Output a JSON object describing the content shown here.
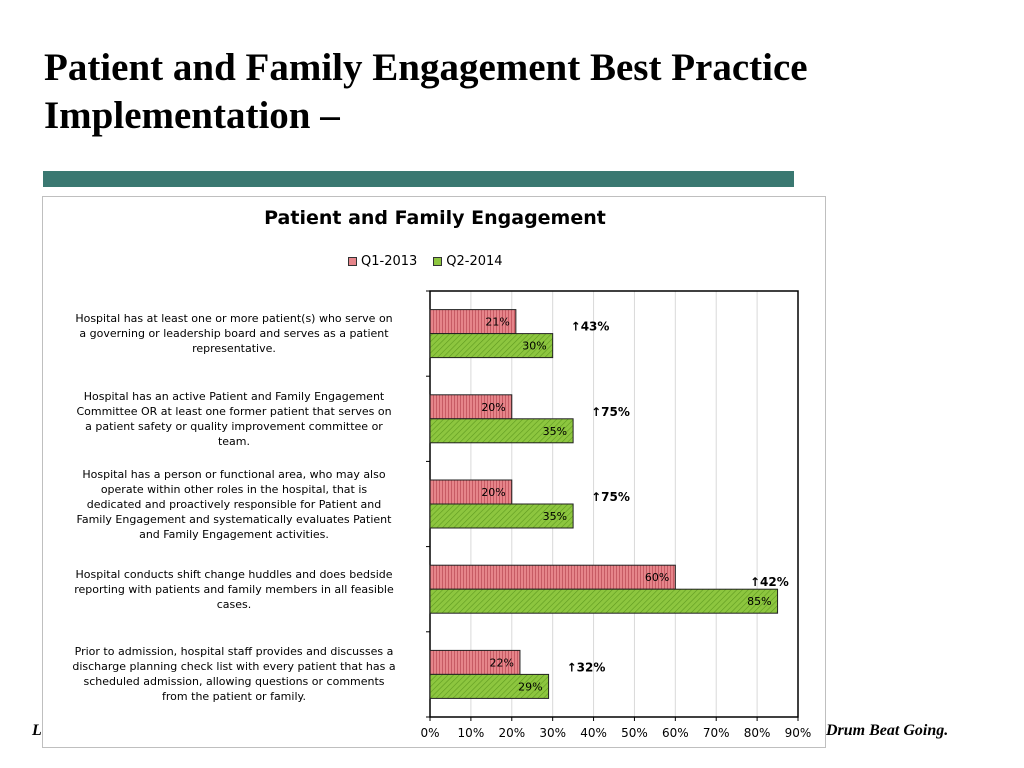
{
  "slide": {
    "title_line1": "Patient and Family Engagement Best Practice",
    "title_line2": "Implementation  –",
    "footer_left": "L",
    "footer_right": "Drum Beat Going.",
    "accent_color": "#3a7871"
  },
  "chart_data": {
    "type": "bar",
    "orientation": "horizontal",
    "title": "Patient and Family Engagement",
    "categories": [
      "Hospital has at least one or more patient(s) who serve on a governing or leadership board and serves as a patient representative.",
      "Hospital has an active Patient and Family Engagement Committee OR at least one former patient that serves on a patient safety or quality improvement committee or team.",
      "Hospital has a person or functional area, who may also operate within other roles in the hospital, that is dedicated and proactively responsible for Patient and Family Engagement and systematically evaluates Patient and Family Engagement activities.",
      "Hospital conducts shift change huddles and does bedside reporting with patients and family members in all feasible cases.",
      "Prior to admission, hospital staff provides and discusses a discharge planning check list with every patient that has a scheduled admission, allowing questions or comments from the patient or family."
    ],
    "category_lines": [
      [
        "Hospital has at least one or more patient(s) who serve on",
        "a governing or leadership board and serves as a patient",
        "representative."
      ],
      [
        "Hospital has an active Patient and Family Engagement",
        "Committee OR at least one former patient that serves on",
        "a patient safety or quality improvement committee or",
        "team."
      ],
      [
        "Hospital has a person or functional area, who may also",
        "operate within other roles in the hospital, that is",
        "dedicated and proactively responsible for Patient and",
        "Family Engagement and systematically evaluates Patient",
        "and Family Engagement activities."
      ],
      [
        "Hospital conducts shift change huddles and does bedside",
        "reporting with patients and family members in all feasible",
        "cases."
      ],
      [
        "Prior to admission, hospital staff provides and discusses a",
        "discharge planning check list with every patient that has a",
        "scheduled admission, allowing questions or comments",
        "from the patient or family."
      ]
    ],
    "series": [
      {
        "name": "Q1-2013",
        "values": [
          21,
          20,
          20,
          60,
          22
        ],
        "labels": [
          "21%",
          "20%",
          "20%",
          "60%",
          "22%"
        ],
        "color": "#e6858a",
        "pattern": "vertical-lines"
      },
      {
        "name": "Q2-2014",
        "values": [
          30,
          35,
          35,
          85,
          29
        ],
        "labels": [
          "30%",
          "35%",
          "35%",
          "85%",
          "29%"
        ],
        "color": "#8dc63f",
        "pattern": "diagonal-lines"
      }
    ],
    "annotations": [
      "↑43%",
      "↑75%",
      "↑75%",
      "↑42%",
      "↑32%"
    ],
    "x_ticks": [
      "0%",
      "10%",
      "20%",
      "30%",
      "40%",
      "50%",
      "60%",
      "70%",
      "80%",
      "90%"
    ],
    "xlim": [
      0,
      90
    ],
    "grid": true,
    "legend_position": "top"
  }
}
